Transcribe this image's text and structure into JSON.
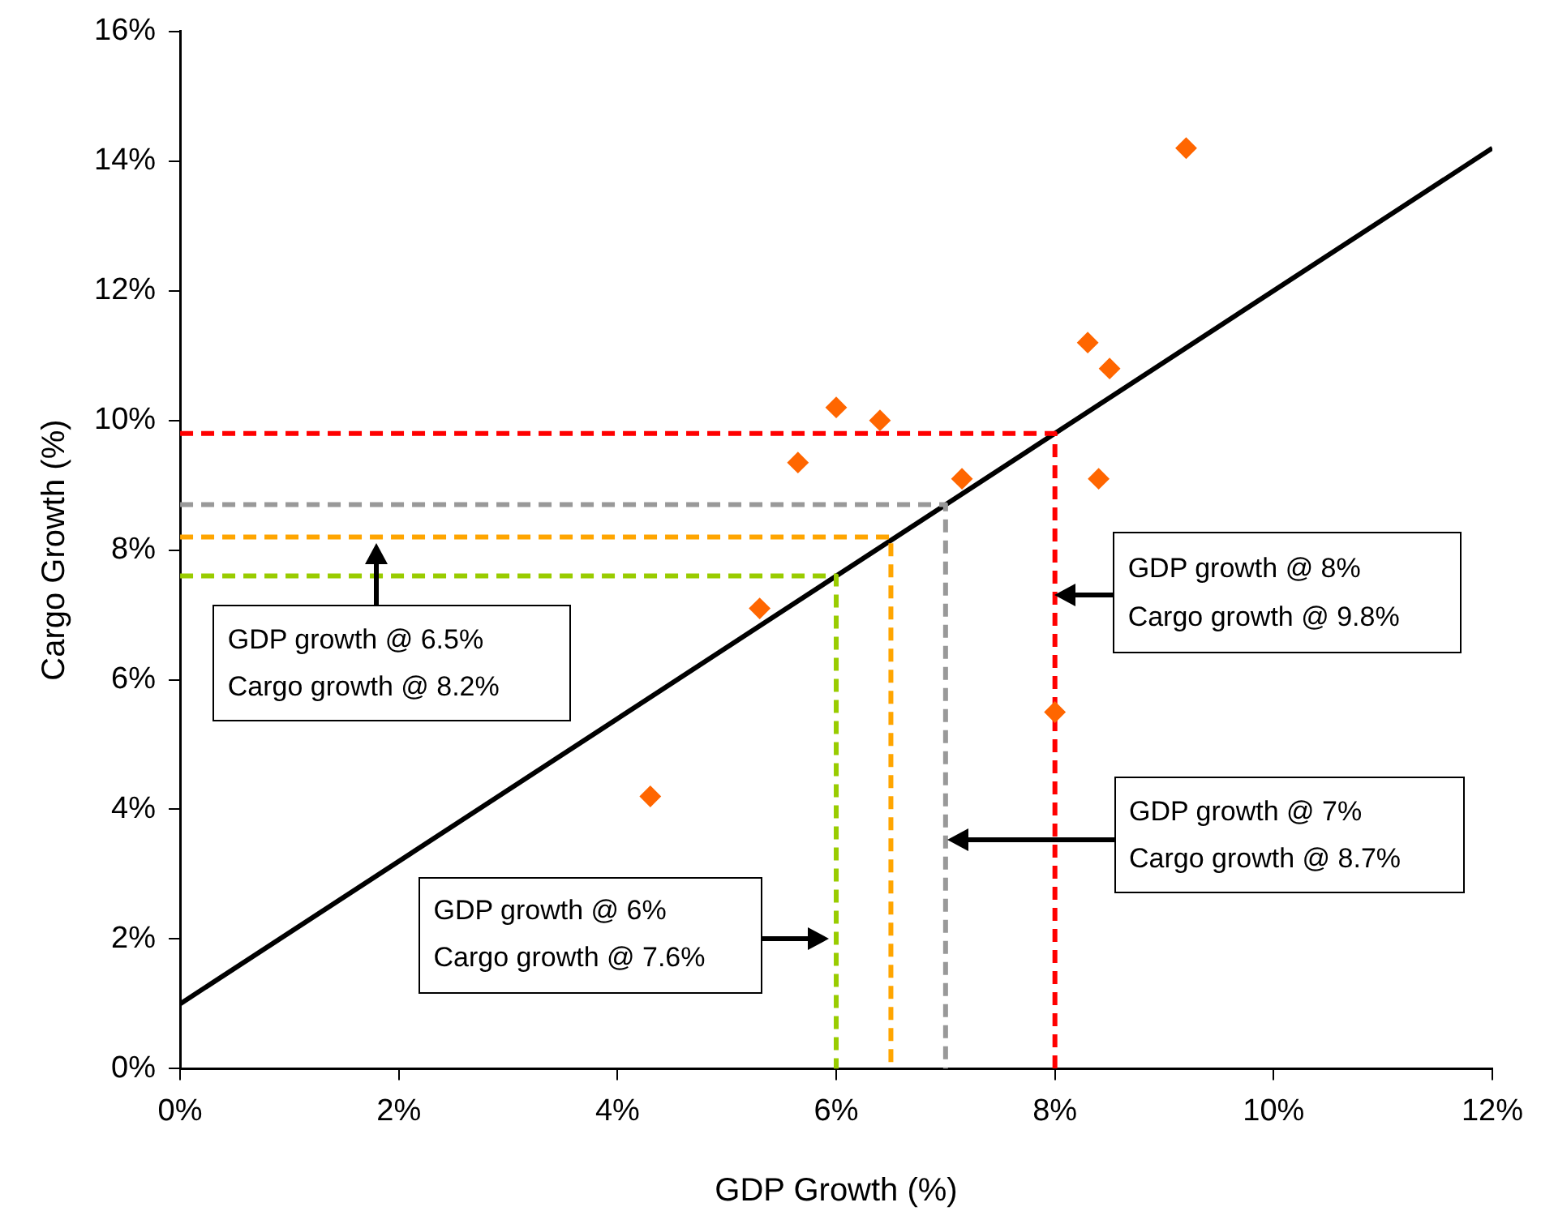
{
  "chart_data": {
    "type": "scatter",
    "xlabel": "GDP Growth (%)",
    "ylabel": "Cargo Growth (%)",
    "xlim": [
      0,
      12
    ],
    "ylim": [
      0,
      16
    ],
    "xticks": [
      {
        "value": 0,
        "label": "0%"
      },
      {
        "value": 2,
        "label": "2%"
      },
      {
        "value": 4,
        "label": "4%"
      },
      {
        "value": 6,
        "label": "6%"
      },
      {
        "value": 8,
        "label": "8%"
      },
      {
        "value": 10,
        "label": "10%"
      },
      {
        "value": 12,
        "label": "12%"
      }
    ],
    "yticks": [
      {
        "value": 0,
        "label": "0%"
      },
      {
        "value": 2,
        "label": "2%"
      },
      {
        "value": 4,
        "label": "4%"
      },
      {
        "value": 6,
        "label": "6%"
      },
      {
        "value": 8,
        "label": "8%"
      },
      {
        "value": 10,
        "label": "10%"
      },
      {
        "value": 12,
        "label": "12%"
      },
      {
        "value": 14,
        "label": "14%"
      },
      {
        "value": 16,
        "label": "16%"
      }
    ],
    "grid": false,
    "legend": false,
    "series": [
      {
        "type": "line",
        "color": "#ff0000",
        "line_style": "dashed",
        "x": [
          0,
          8,
          8
        ],
        "values": [
          9.8,
          9.8,
          0
        ]
      },
      {
        "type": "line",
        "color": "#999999",
        "line_style": "dashed",
        "x": [
          0,
          7,
          7
        ],
        "values": [
          8.7,
          8.7,
          0
        ]
      },
      {
        "type": "line",
        "color": "#ffa500",
        "line_style": "dashed",
        "x": [
          0,
          6.5,
          6.5
        ],
        "values": [
          8.2,
          8.2,
          0
        ]
      },
      {
        "type": "line",
        "color": "#99cc00",
        "line_style": "dashed",
        "x": [
          0,
          6,
          6
        ],
        "values": [
          7.6,
          7.6,
          0
        ]
      },
      {
        "type": "line",
        "color": "#000000",
        "line_style": "solid",
        "x": [
          0,
          12
        ],
        "values": [
          1.0,
          14.2
        ]
      },
      {
        "type": "scatter",
        "color": "#ff6600",
        "marker": "diamond",
        "x": [
          4.3,
          5.3,
          5.65,
          6.0,
          6.4,
          7.15,
          8.0,
          8.3,
          8.4,
          8.5,
          9.2
        ],
        "values": [
          4.2,
          7.1,
          9.35,
          10.2,
          10.0,
          9.1,
          5.5,
          11.2,
          9.1,
          10.8,
          14.2
        ]
      }
    ],
    "annotations": [
      {
        "text": "GDP growth @ 8%\nCargo growth @ 9.8%",
        "x": 8,
        "y": 7.3
      },
      "GDP growth @ 7%\nCargo growth @ 8.7%",
      "GDP growth @ 6%\nCargo growth @ 7.6%",
      {
        "text": "GDP growth @ 6.5%\nCargo growth @ 8.2%",
        "x": 1.8,
        "y": 8.1
      }
    ]
  }
}
